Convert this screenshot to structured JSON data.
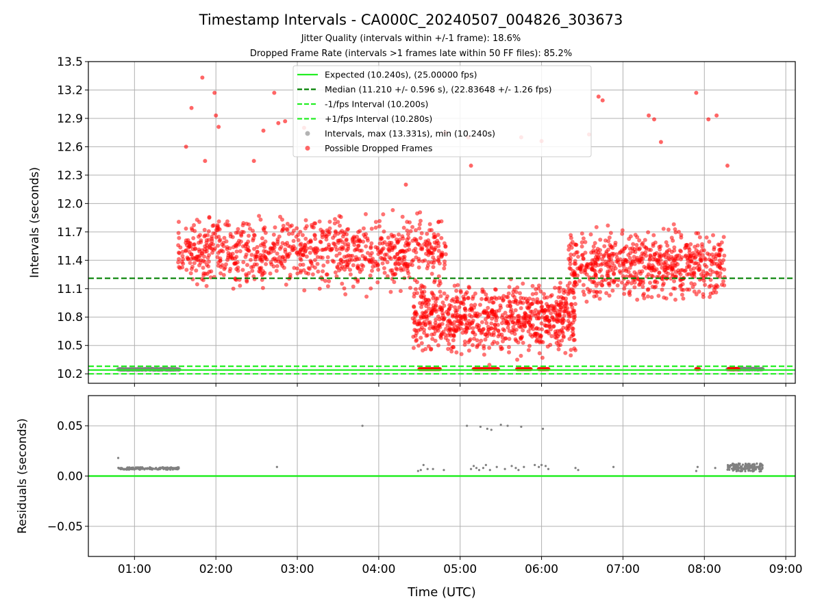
{
  "figure": {
    "title": "Timestamp Intervals - CA000C_20240507_004826_303673",
    "subtitle_1": "Jitter Quality (intervals within +/-1 frame): 18.6%",
    "subtitle_2": "Dropped Frame Rate (intervals >1 frames late within 50 FF files): 85.2%"
  },
  "chart_data": [
    {
      "type": "scatter",
      "panel": "top",
      "xlabel": "",
      "ylabel": "Intervals (seconds)",
      "xlim": [
        "00:26",
        "09:07"
      ],
      "ylim": [
        10.1,
        13.5
      ],
      "yticks": [
        10.2,
        10.5,
        10.8,
        11.1,
        11.4,
        11.7,
        12.0,
        12.3,
        12.6,
        12.9,
        13.2,
        13.5
      ],
      "ytick_labels": [
        "10.2",
        "10.5",
        "10.8",
        "11.1",
        "11.4",
        "11.7",
        "12.0",
        "12.3",
        "12.6",
        "12.9",
        "13.2",
        "13.5"
      ],
      "grid": true,
      "legend_position": "upper center",
      "reference_lines": [
        {
          "name": "Expected (10.240s), (25.00000 fps)",
          "y": 10.24,
          "color": "#22ee22",
          "style": "solid"
        },
        {
          "name": "Median (11.210 +/- 0.596 s), (22.83648 +/- 1.26 fps)",
          "y": 11.21,
          "color": "#008000",
          "style": "dashed"
        },
        {
          "name": "-1/fps Interval (10.200s)",
          "y": 10.2,
          "color": "#22ee22",
          "style": "dashed"
        },
        {
          "name": "+1/fps Interval (10.280s)",
          "y": 10.28,
          "color": "#22ee22",
          "style": "dashed"
        }
      ],
      "series": [
        {
          "name": "Intervals, max (13.331s), min (10.240s)",
          "color": "#808080",
          "clusters": [
            {
              "x_start": "00:48",
              "x_end": "01:33",
              "y": 10.248
            },
            {
              "x_start": "08:17",
              "x_end": "08:43",
              "y": 10.25
            }
          ]
        },
        {
          "name": "Possible Dropped Frames",
          "color": "#ff0000",
          "density_segments": [
            {
              "x_start": "01:32",
              "x_end": "04:50",
              "y_center": 11.5,
              "y_spread": 0.55,
              "points": 900
            },
            {
              "x_start": "04:25",
              "x_end": "06:25",
              "y_center": 10.78,
              "y_spread": 0.55,
              "points": 800
            },
            {
              "x_start": "06:20",
              "x_end": "08:15",
              "y_center": 11.35,
              "y_spread": 0.5,
              "points": 650
            }
          ],
          "outliers": [
            {
              "x": "01:50",
              "y": 13.331
            },
            {
              "x": "01:59",
              "y": 13.17
            },
            {
              "x": "01:42",
              "y": 13.01
            },
            {
              "x": "02:00",
              "y": 12.93
            },
            {
              "x": "02:02",
              "y": 12.81
            },
            {
              "x": "01:38",
              "y": 12.6
            },
            {
              "x": "01:52",
              "y": 12.45
            },
            {
              "x": "02:43",
              "y": 13.17
            },
            {
              "x": "02:35",
              "y": 12.77
            },
            {
              "x": "02:46",
              "y": 12.85
            },
            {
              "x": "02:51",
              "y": 12.87
            },
            {
              "x": "04:49",
              "y": 12.75
            },
            {
              "x": "05:06",
              "y": 12.7
            },
            {
              "x": "05:45",
              "y": 12.7
            },
            {
              "x": "06:00",
              "y": 12.66
            },
            {
              "x": "06:35",
              "y": 12.73
            },
            {
              "x": "06:42",
              "y": 13.13
            },
            {
              "x": "06:45",
              "y": 13.09
            },
            {
              "x": "07:54",
              "y": 13.17
            },
            {
              "x": "08:03",
              "y": 12.89
            },
            {
              "x": "08:09",
              "y": 12.93
            },
            {
              "x": "07:19",
              "y": 12.93
            },
            {
              "x": "07:23",
              "y": 12.89
            },
            {
              "x": "07:28",
              "y": 12.65
            },
            {
              "x": "08:17",
              "y": 12.4
            },
            {
              "x": "02:28",
              "y": 12.45
            },
            {
              "x": "03:05",
              "y": 12.8
            },
            {
              "x": "05:08",
              "y": 12.4
            },
            {
              "x": "04:20",
              "y": 12.2
            }
          ],
          "low_clusters": [
            {
              "x_start": "04:30",
              "x_end": "04:45",
              "y": 10.25
            },
            {
              "x_start": "05:10",
              "x_end": "05:28",
              "y": 10.25
            },
            {
              "x_start": "05:42",
              "x_end": "05:52",
              "y": 10.25
            },
            {
              "x_start": "05:58",
              "x_end": "06:05",
              "y": 10.25
            },
            {
              "x_start": "07:54",
              "x_end": "07:56",
              "y": 10.25
            },
            {
              "x_start": "08:18",
              "x_end": "08:25",
              "y": 10.25
            }
          ]
        }
      ]
    },
    {
      "type": "scatter",
      "panel": "bottom",
      "xlabel": "Time (UTC)",
      "ylabel": "Residuals (seconds)",
      "xlim": [
        "00:26",
        "09:07"
      ],
      "ylim": [
        -0.08,
        0.08
      ],
      "yticks": [
        -0.05,
        0.0,
        0.05
      ],
      "ytick_labels": [
        "−0.05",
        "0.00",
        "0.05"
      ],
      "xticks": [
        "01:00",
        "02:00",
        "03:00",
        "04:00",
        "05:00",
        "06:00",
        "07:00",
        "08:00",
        "09:00"
      ],
      "xtick_labels": [
        "01:00",
        "02:00",
        "03:00",
        "04:00",
        "05:00",
        "06:00",
        "07:00",
        "08:00",
        "09:00"
      ],
      "grid": true,
      "reference_lines": [
        {
          "y": 0.0,
          "color": "#22ee22",
          "style": "solid"
        }
      ],
      "series": [
        {
          "name": "Residuals",
          "color": "#808080",
          "clusters": [
            {
              "x_start": "00:48",
              "x_end": "01:33",
              "y_center": 0.0075,
              "y_spread": 0.0012,
              "points": 140
            },
            {
              "x_start": "08:17",
              "x_end": "08:43",
              "y_center": 0.0085,
              "y_spread": 0.004,
              "points": 160
            }
          ],
          "points": [
            {
              "x": "00:48",
              "y": 0.018
            },
            {
              "x": "03:48",
              "y": 0.05
            },
            {
              "x": "02:45",
              "y": 0.009
            },
            {
              "x": "05:05",
              "y": 0.05
            },
            {
              "x": "05:15",
              "y": 0.049
            },
            {
              "x": "05:20",
              "y": 0.047
            },
            {
              "x": "05:23",
              "y": 0.046
            },
            {
              "x": "05:30",
              "y": 0.051
            },
            {
              "x": "05:35",
              "y": 0.05
            },
            {
              "x": "05:45",
              "y": 0.049
            },
            {
              "x": "06:01",
              "y": 0.047
            },
            {
              "x": "04:29",
              "y": 0.005
            },
            {
              "x": "04:31",
              "y": 0.006
            },
            {
              "x": "04:33",
              "y": 0.011
            },
            {
              "x": "04:36",
              "y": 0.007
            },
            {
              "x": "04:40",
              "y": 0.007
            },
            {
              "x": "04:48",
              "y": 0.006
            },
            {
              "x": "05:08",
              "y": 0.007
            },
            {
              "x": "05:10",
              "y": 0.01
            },
            {
              "x": "05:12",
              "y": 0.008
            },
            {
              "x": "05:14",
              "y": 0.006
            },
            {
              "x": "05:17",
              "y": 0.008
            },
            {
              "x": "05:19",
              "y": 0.011
            },
            {
              "x": "05:22",
              "y": 0.006
            },
            {
              "x": "05:27",
              "y": 0.009
            },
            {
              "x": "05:33",
              "y": 0.007
            },
            {
              "x": "05:38",
              "y": 0.01
            },
            {
              "x": "05:41",
              "y": 0.008
            },
            {
              "x": "05:43",
              "y": 0.006
            },
            {
              "x": "05:47",
              "y": 0.009
            },
            {
              "x": "05:55",
              "y": 0.011
            },
            {
              "x": "05:58",
              "y": 0.009
            },
            {
              "x": "06:00",
              "y": 0.011
            },
            {
              "x": "06:03",
              "y": 0.01
            },
            {
              "x": "06:05",
              "y": 0.007
            },
            {
              "x": "06:25",
              "y": 0.008
            },
            {
              "x": "06:27",
              "y": 0.006
            },
            {
              "x": "06:53",
              "y": 0.009
            },
            {
              "x": "07:54",
              "y": 0.005
            },
            {
              "x": "07:55",
              "y": 0.009
            },
            {
              "x": "08:08",
              "y": 0.008
            }
          ]
        }
      ]
    }
  ]
}
